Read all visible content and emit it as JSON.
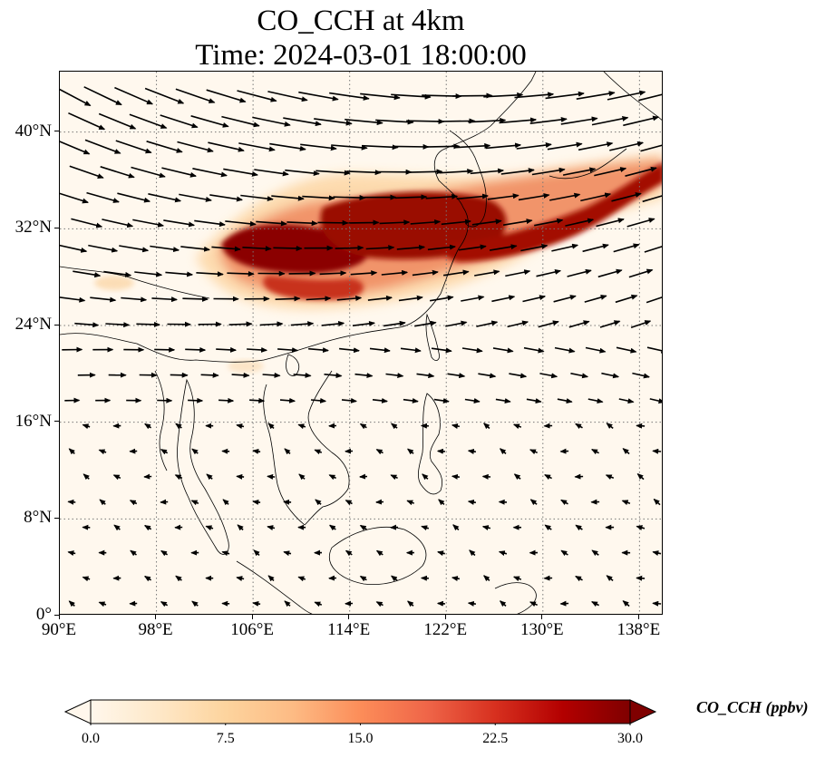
{
  "title": {
    "line1": "CO_CCH at 4km",
    "line2": "Time: 2024-03-01 18:00:00"
  },
  "map": {
    "extent": {
      "lon_min": 90,
      "lon_max": 140,
      "lat_min": 0,
      "lat_max": 45
    },
    "gridlines": "dotted",
    "coastlines": true,
    "wind_vectors": true,
    "x_ticks": [
      {
        "value": 90,
        "label": "90°E"
      },
      {
        "value": 98,
        "label": "98°E"
      },
      {
        "value": 106,
        "label": "106°E"
      },
      {
        "value": 114,
        "label": "114°E"
      },
      {
        "value": 122,
        "label": "122°E"
      },
      {
        "value": 130,
        "label": "130°E"
      },
      {
        "value": 138,
        "label": "138°E"
      }
    ],
    "y_ticks": [
      {
        "value": 0,
        "label": "0°"
      },
      {
        "value": 8,
        "label": "8°N"
      },
      {
        "value": 16,
        "label": "16°N"
      },
      {
        "value": 24,
        "label": "24°N"
      },
      {
        "value": 32,
        "label": "32°N"
      },
      {
        "value": 40,
        "label": "40°N"
      }
    ]
  },
  "colorbar": {
    "label": "CO_CCH (ppbv)",
    "colormap": "OrRd",
    "colors": [
      "#fff7ec",
      "#fee8c8",
      "#fdd49e",
      "#fdbb84",
      "#fc8d59",
      "#ef6548",
      "#d7301f",
      "#b30000",
      "#7f0000"
    ],
    "min": 0.0,
    "max": 30.0,
    "extend": "both",
    "ticks": [
      {
        "value": 0.0,
        "label": "0.0"
      },
      {
        "value": 7.5,
        "label": "7.5"
      },
      {
        "value": 15.0,
        "label": "15.0"
      },
      {
        "value": 22.5,
        "label": "22.5"
      },
      {
        "value": 30.0,
        "label": "30.0"
      }
    ]
  }
}
